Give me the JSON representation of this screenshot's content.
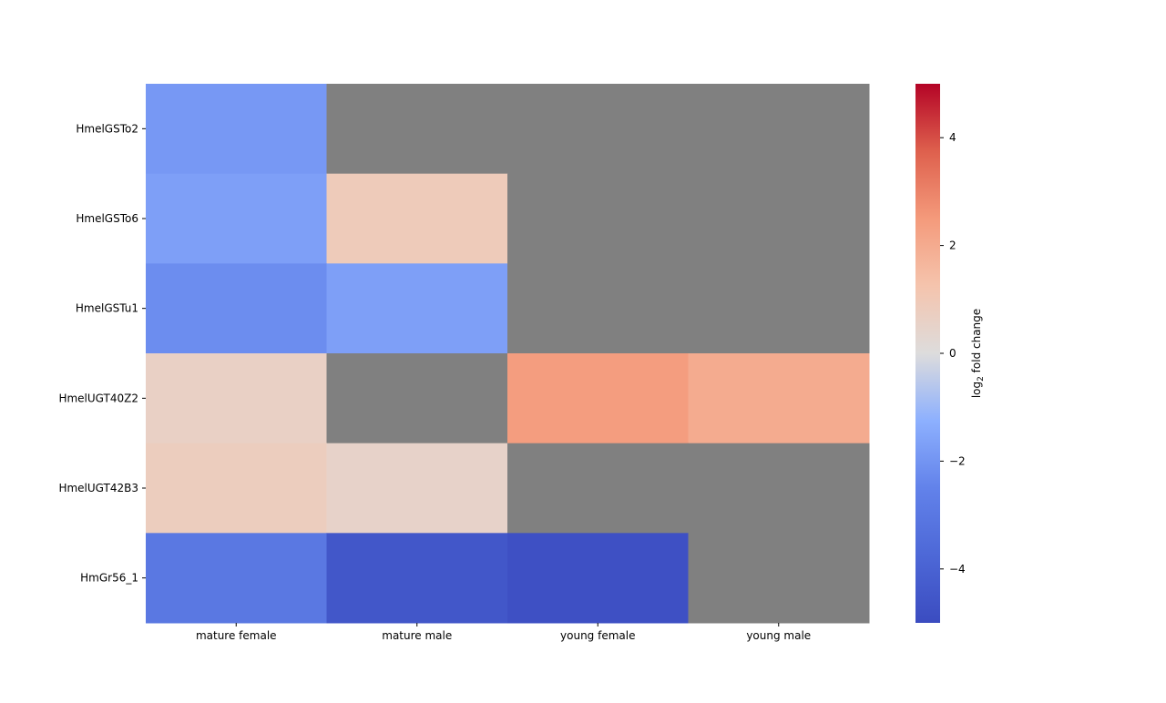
{
  "chart_data": {
    "type": "heatmap",
    "title": "",
    "xlabel": "",
    "ylabel": "",
    "rows": [
      "HmelGSTo2",
      "HmelGSTo6",
      "HmelGSTu1",
      "HmelUGT40Z2",
      "HmelUGT42B3",
      "HmGr56_1"
    ],
    "columns": [
      "mature female",
      "mature male",
      "young female",
      "young male"
    ],
    "values": [
      [
        -1.9,
        null,
        null,
        null
      ],
      [
        -1.7,
        0.9,
        null,
        null
      ],
      [
        -2.2,
        -1.7,
        null,
        null
      ],
      [
        0.6,
        null,
        2.4,
        2.0
      ],
      [
        0.8,
        0.5,
        null,
        null
      ],
      [
        -3.0,
        -4.5,
        -4.8,
        null
      ]
    ],
    "missing_color": "#808080",
    "colormap": "coolwarm",
    "vmin": -5,
    "vmax": 5,
    "colorbar": {
      "label_prefix": "log",
      "label_sub": "2",
      "label_suffix": " fold change",
      "ticks": [
        -4,
        -2,
        0,
        2,
        4
      ],
      "tick_labels": [
        "−4",
        "−2",
        "0",
        "2",
        "4"
      ]
    },
    "grid": false,
    "legend": "colorbar-right"
  }
}
